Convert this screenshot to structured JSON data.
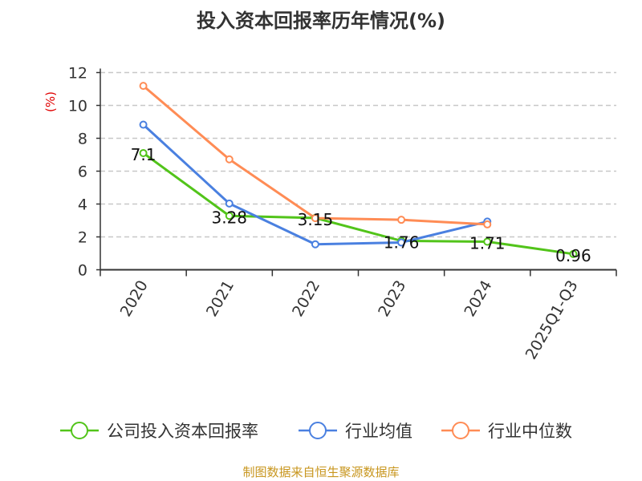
{
  "chart_data": {
    "type": "line",
    "title": "投入资本回报率历年情况(%)",
    "ylabel": "(%)",
    "xlabel": "",
    "ylim": [
      0,
      12
    ],
    "yticks": [
      0,
      2,
      4,
      6,
      8,
      10,
      12
    ],
    "grid": true,
    "legend_position": "bottom",
    "categories": [
      "2020",
      "2021",
      "2022",
      "2023",
      "2024",
      "2025Q1-Q3"
    ],
    "series": [
      {
        "name": "公司投入资本回报率",
        "color": "#52c41a",
        "values": [
          7.1,
          3.28,
          3.15,
          1.76,
          1.71,
          0.96
        ],
        "labels": [
          "7.1",
          "3.28",
          "3.15",
          "1.76",
          "1.71",
          "0.96"
        ]
      },
      {
        "name": "行业均值",
        "color": "#4a80e0",
        "values": [
          8.83,
          4.03,
          1.55,
          1.66,
          2.93,
          null
        ]
      },
      {
        "name": "行业中位数",
        "color": "#ff8c55",
        "values": [
          11.19,
          6.72,
          3.14,
          3.04,
          2.76,
          null
        ]
      }
    ]
  },
  "source": "制图数据来自恒生聚源数据库"
}
